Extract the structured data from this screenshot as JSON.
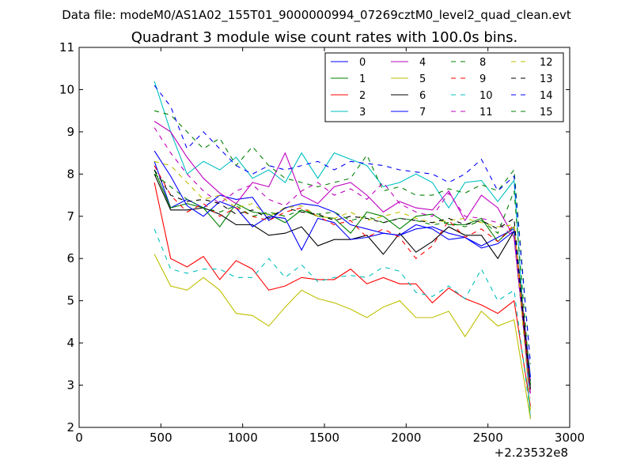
{
  "figure": {
    "suptitle": "Data file: modeM0/AS1A02_155T01_9000000994_07269cztM0_level2_quad_clean.evt"
  },
  "chart_data": {
    "type": "line",
    "title": "Quadrant 3 module wise count rates with 100.0s bins.",
    "xlabel": "",
    "ylabel": "",
    "xlim": [
      0,
      3000
    ],
    "ylim": [
      2,
      11
    ],
    "x_ticks": [
      "0",
      "500",
      "1000",
      "1500",
      "2000",
      "2500",
      "3000"
    ],
    "y_ticks": [
      "2",
      "3",
      "4",
      "5",
      "6",
      "7",
      "8",
      "9",
      "10",
      "11"
    ],
    "x_offset_label": "+2.23532e8",
    "grid": false,
    "legend_position": "top-right",
    "x": [
      460,
      560,
      660,
      760,
      860,
      960,
      1060,
      1160,
      1260,
      1360,
      1460,
      1560,
      1660,
      1760,
      1860,
      1960,
      2060,
      2160,
      2260,
      2360,
      2460,
      2560,
      2660,
      2760
    ],
    "series": [
      {
        "name": "0",
        "color": "#0000ff",
        "dash": "solid",
        "values": [
          8.3,
          7.2,
          7.4,
          7.2,
          7.5,
          7.4,
          7.45,
          6.9,
          7.2,
          7.3,
          7.25,
          7.1,
          6.8,
          6.7,
          6.6,
          6.55,
          6.7,
          6.75,
          6.6,
          6.5,
          6.3,
          6.5,
          6.7,
          3.2
        ]
      },
      {
        "name": "1",
        "color": "#008000",
        "dash": "solid",
        "values": [
          8.1,
          7.2,
          7.3,
          7.2,
          6.75,
          7.3,
          7.1,
          7.05,
          6.85,
          7.15,
          7.0,
          6.95,
          6.6,
          7.1,
          7.0,
          6.7,
          7.0,
          7.05,
          6.8,
          6.8,
          6.95,
          6.4,
          6.75,
          3.0
        ]
      },
      {
        "name": "2",
        "color": "#ff0000",
        "dash": "solid",
        "values": [
          7.8,
          6.0,
          5.8,
          6.05,
          5.5,
          5.95,
          5.75,
          5.25,
          5.35,
          5.55,
          5.5,
          5.5,
          5.75,
          5.4,
          5.55,
          5.4,
          5.4,
          4.95,
          5.3,
          5.05,
          4.9,
          4.7,
          5.0,
          2.5
        ]
      },
      {
        "name": "3",
        "color": "#00bfbf",
        "dash": "solid",
        "values": [
          10.2,
          9.0,
          8.0,
          8.3,
          8.1,
          8.4,
          7.9,
          8.1,
          7.8,
          8.5,
          7.9,
          8.5,
          8.35,
          8.2,
          7.7,
          7.8,
          8.0,
          7.8,
          7.2,
          7.8,
          7.85,
          7.35,
          7.85,
          2.2
        ]
      },
      {
        "name": "4",
        "color": "#bf00bf",
        "dash": "solid",
        "values": [
          9.25,
          9.0,
          8.4,
          7.9,
          7.55,
          7.3,
          7.8,
          7.7,
          8.5,
          7.5,
          7.3,
          7.7,
          7.8,
          7.5,
          7.1,
          7.35,
          7.2,
          7.15,
          7.6,
          6.9,
          7.5,
          7.2,
          6.5,
          2.8
        ]
      },
      {
        "name": "5",
        "color": "#bfbf00",
        "dash": "solid",
        "values": [
          6.1,
          5.35,
          5.25,
          5.55,
          5.25,
          4.7,
          4.65,
          4.4,
          4.85,
          5.25,
          5.05,
          4.95,
          4.8,
          4.6,
          4.85,
          5.0,
          4.6,
          4.6,
          4.75,
          4.15,
          4.75,
          4.4,
          4.55,
          2.2
        ]
      },
      {
        "name": "6",
        "color": "#000000",
        "dash": "solid",
        "values": [
          8.0,
          7.15,
          7.15,
          7.2,
          7.05,
          6.8,
          6.8,
          6.55,
          6.6,
          6.75,
          6.3,
          6.45,
          6.45,
          6.55,
          6.1,
          6.6,
          6.15,
          6.4,
          6.75,
          6.55,
          6.55,
          6.0,
          6.65,
          2.9
        ]
      },
      {
        "name": "7",
        "color": "#0000ff",
        "dash": "solid",
        "values": [
          8.55,
          7.95,
          7.25,
          7.0,
          7.35,
          7.2,
          6.75,
          7.0,
          6.95,
          6.2,
          6.95,
          6.85,
          6.45,
          6.5,
          6.6,
          6.55,
          6.8,
          6.7,
          6.45,
          6.5,
          6.25,
          6.35,
          6.65,
          3.1
        ]
      },
      {
        "name": "8",
        "color": "#008000",
        "dash": "dashed",
        "values": [
          9.5,
          9.4,
          9.0,
          8.6,
          8.85,
          8.2,
          8.65,
          8.2,
          7.9,
          7.8,
          7.7,
          7.8,
          7.9,
          8.45,
          7.6,
          7.7,
          7.5,
          7.5,
          7.65,
          7.55,
          7.75,
          7.6,
          8.1,
          3.5
        ]
      },
      {
        "name": "9",
        "color": "#ff0000",
        "dash": "dashed",
        "values": [
          8.2,
          7.5,
          7.1,
          7.3,
          7.0,
          7.2,
          7.0,
          6.9,
          7.1,
          7.2,
          7.0,
          6.8,
          6.9,
          6.5,
          6.7,
          6.5,
          6.0,
          6.3,
          6.9,
          6.5,
          6.7,
          6.4,
          6.8,
          3.0
        ]
      },
      {
        "name": "10",
        "color": "#00bfbf",
        "dash": "dashed",
        "values": [
          6.7,
          5.75,
          5.65,
          5.75,
          5.75,
          5.55,
          5.55,
          6.0,
          5.55,
          5.85,
          5.45,
          5.55,
          5.6,
          5.55,
          5.8,
          5.7,
          5.2,
          5.1,
          5.35,
          5.05,
          5.75,
          5.0,
          5.25,
          2.3
        ]
      },
      {
        "name": "11",
        "color": "#bf00bf",
        "dash": "dashed",
        "values": [
          9.1,
          8.5,
          8.0,
          7.6,
          7.3,
          7.6,
          7.75,
          7.4,
          7.25,
          7.6,
          7.8,
          7.5,
          7.65,
          7.4,
          7.8,
          7.3,
          7.1,
          7.0,
          7.55,
          7.0,
          6.95,
          6.85,
          6.5,
          2.7
        ]
      },
      {
        "name": "12",
        "color": "#bfbf00",
        "dash": "dashed",
        "values": [
          8.3,
          8.2,
          7.8,
          7.4,
          7.5,
          7.2,
          7.3,
          7.0,
          7.2,
          7.25,
          7.0,
          6.95,
          7.1,
          6.9,
          7.0,
          7.1,
          6.95,
          6.85,
          6.9,
          6.95,
          6.85,
          6.75,
          6.8,
          2.4
        ]
      },
      {
        "name": "13",
        "color": "#000000",
        "dash": "dashed",
        "values": [
          8.1,
          7.5,
          7.35,
          7.4,
          7.3,
          7.05,
          7.15,
          6.95,
          7.2,
          7.1,
          7.05,
          6.9,
          7.0,
          6.95,
          6.85,
          6.95,
          6.9,
          6.85,
          6.95,
          6.8,
          6.9,
          6.7,
          6.95,
          2.9
        ]
      },
      {
        "name": "14",
        "color": "#0000ff",
        "dash": "dashed",
        "values": [
          10.1,
          9.6,
          8.6,
          9.0,
          8.6,
          8.2,
          8.0,
          8.2,
          8.1,
          8.2,
          8.3,
          8.1,
          8.3,
          8.25,
          8.2,
          8.1,
          8.05,
          8.0,
          7.8,
          8.0,
          8.35,
          7.6,
          7.95,
          3.5
        ]
      },
      {
        "name": "15",
        "color": "#008000",
        "dash": "dashed",
        "values": [
          8.0,
          7.7,
          7.4,
          7.2,
          7.1,
          7.25,
          7.0,
          7.1,
          7.0,
          7.15,
          7.05,
          7.1,
          6.9,
          7.0,
          6.85,
          6.95,
          6.9,
          6.8,
          6.85,
          6.75,
          6.9,
          6.6,
          7.6,
          3.0
        ]
      }
    ]
  }
}
